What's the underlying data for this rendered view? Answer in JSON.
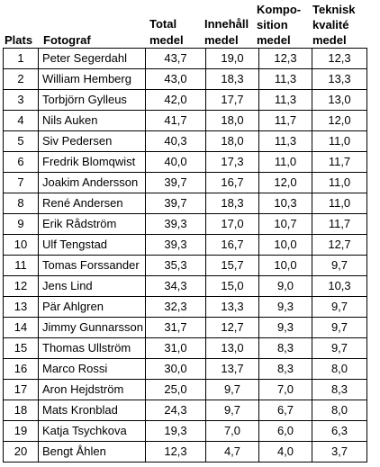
{
  "headers": {
    "plats": "Plats",
    "fotograf": "Fotograf",
    "total_line1": "Total",
    "total_line2": "medel",
    "innehall_line1": "Innehåll",
    "innehall_line2": "medel",
    "komp_line1": "Kompo-",
    "komp_line2": "sition",
    "komp_line3": "medel",
    "teknisk_line1": "Teknisk",
    "teknisk_line2": "kvalité",
    "teknisk_line3": "medel"
  },
  "rows": [
    {
      "plats": "1",
      "fotograf": "Peter Segerdahl",
      "total": "43,7",
      "innehall": "19,0",
      "komposition": "12,3",
      "teknisk": "12,3"
    },
    {
      "plats": "2",
      "fotograf": "William Hemberg",
      "total": "43,0",
      "innehall": "18,3",
      "komposition": "11,3",
      "teknisk": "13,3"
    },
    {
      "plats": "3",
      "fotograf": "Torbjörn Gylleus",
      "total": "42,0",
      "innehall": "17,7",
      "komposition": "11,3",
      "teknisk": "13,0"
    },
    {
      "plats": "4",
      "fotograf": "Nils Auken",
      "total": "41,7",
      "innehall": "18,0",
      "komposition": "11,7",
      "teknisk": "12,0"
    },
    {
      "plats": "5",
      "fotograf": "Siv Pedersen",
      "total": "40,3",
      "innehall": "18,0",
      "komposition": "11,3",
      "teknisk": "11,0"
    },
    {
      "plats": "6",
      "fotograf": "Fredrik Blomqwist",
      "total": "40,0",
      "innehall": "17,3",
      "komposition": "11,0",
      "teknisk": "11,7"
    },
    {
      "plats": "7",
      "fotograf": "Joakim Andersson",
      "total": "39,7",
      "innehall": "16,7",
      "komposition": "12,0",
      "teknisk": "11,0"
    },
    {
      "plats": "8",
      "fotograf": "René Andersen",
      "total": "39,7",
      "innehall": "18,3",
      "komposition": "10,3",
      "teknisk": "11,0"
    },
    {
      "plats": "9",
      "fotograf": "Erik Rådström",
      "total": "39,3",
      "innehall": "17,0",
      "komposition": "10,7",
      "teknisk": "11,7"
    },
    {
      "plats": "10",
      "fotograf": "Ulf Tengstad",
      "total": "39,3",
      "innehall": "16,7",
      "komposition": "10,0",
      "teknisk": "12,7"
    },
    {
      "plats": "11",
      "fotograf": "Tomas Forssander",
      "total": "35,3",
      "innehall": "15,7",
      "komposition": "10,0",
      "teknisk": "9,7"
    },
    {
      "plats": "12",
      "fotograf": "Jens Lind",
      "total": "34,3",
      "innehall": "15,0",
      "komposition": "9,0",
      "teknisk": "10,3"
    },
    {
      "plats": "13",
      "fotograf": "Pär Ahlgren",
      "total": "32,3",
      "innehall": "13,3",
      "komposition": "9,3",
      "teknisk": "9,7"
    },
    {
      "plats": "14",
      "fotograf": "Jimmy Gunnarsson",
      "total": "31,7",
      "innehall": "12,7",
      "komposition": "9,3",
      "teknisk": "9,7"
    },
    {
      "plats": "15",
      "fotograf": "Thomas Ullström",
      "total": "31,0",
      "innehall": "13,0",
      "komposition": "8,3",
      "teknisk": "9,7"
    },
    {
      "plats": "16",
      "fotograf": "Marco Rossi",
      "total": "30,0",
      "innehall": "13,7",
      "komposition": "8,3",
      "teknisk": "8,0"
    },
    {
      "plats": "17",
      "fotograf": "Aron Hejdström",
      "total": "25,0",
      "innehall": "9,7",
      "komposition": "7,0",
      "teknisk": "8,3"
    },
    {
      "plats": "18",
      "fotograf": "Mats Kronblad",
      "total": "24,3",
      "innehall": "9,7",
      "komposition": "6,7",
      "teknisk": "8,0"
    },
    {
      "plats": "19",
      "fotograf": "Katja Tsychkova",
      "total": "19,3",
      "innehall": "7,0",
      "komposition": "6,0",
      "teknisk": "6,3"
    },
    {
      "plats": "20",
      "fotograf": "Bengt Åhlen",
      "total": "12,3",
      "innehall": "4,7",
      "komposition": "4,0",
      "teknisk": "3,7"
    }
  ]
}
